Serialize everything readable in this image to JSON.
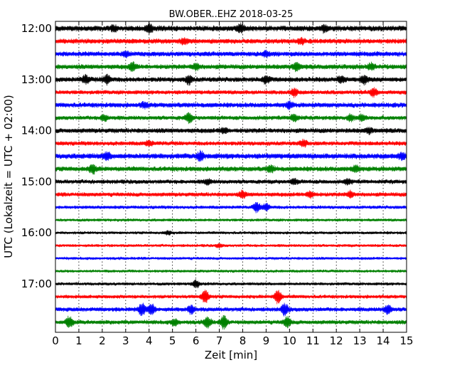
{
  "chart_data": {
    "type": "line",
    "title": "BW.OBER..EHZ 2018-03-25",
    "xlabel": "Zeit  [min]",
    "ylabel": "UTC (Lokalzeit = UTC + 02:00)",
    "xlim": [
      0,
      15
    ],
    "x_ticks": [
      "0",
      "1",
      "2",
      "3",
      "4",
      "5",
      "6",
      "7",
      "8",
      "9",
      "10",
      "11",
      "12",
      "13",
      "14",
      "15"
    ],
    "y_tick_labels": [
      "12:00",
      "13:00",
      "14:00",
      "15:00",
      "16:00",
      "17:00"
    ],
    "grid": "vertical-dotted",
    "row_colors": [
      "#000000",
      "#ff0000",
      "#0000ff",
      "#008000"
    ],
    "series": [
      {
        "start": "12:00",
        "color": "#000000",
        "amp": 4.5,
        "events": [
          [
            2.5,
            3
          ],
          [
            4.0,
            5
          ],
          [
            7.9,
            5
          ],
          [
            11.5,
            4
          ]
        ]
      },
      {
        "start": "12:15",
        "color": "#ff0000",
        "amp": 4.0,
        "events": [
          [
            5.5,
            3
          ],
          [
            10.5,
            3
          ]
        ]
      },
      {
        "start": "12:30",
        "color": "#0000ff",
        "amp": 4.0,
        "events": [
          [
            3.0,
            3
          ],
          [
            9.0,
            3
          ]
        ]
      },
      {
        "start": "12:45",
        "color": "#008000",
        "amp": 4.0,
        "events": [
          [
            3.3,
            5
          ],
          [
            6.0,
            4
          ],
          [
            10.3,
            5
          ],
          [
            13.5,
            4
          ]
        ]
      },
      {
        "start": "13:00",
        "color": "#000000",
        "amp": 4.0,
        "events": [
          [
            1.3,
            5
          ],
          [
            2.2,
            6
          ],
          [
            5.7,
            5
          ],
          [
            9.0,
            5
          ],
          [
            12.2,
            4
          ],
          [
            13.2,
            5
          ]
        ]
      },
      {
        "start": "13:15",
        "color": "#ff0000",
        "amp": 3.5,
        "events": [
          [
            10.2,
            5
          ],
          [
            13.6,
            5
          ]
        ]
      },
      {
        "start": "13:30",
        "color": "#0000ff",
        "amp": 4.0,
        "events": [
          [
            3.8,
            3
          ],
          [
            10.0,
            4
          ]
        ]
      },
      {
        "start": "13:45",
        "color": "#008000",
        "amp": 3.5,
        "events": [
          [
            2.1,
            4
          ],
          [
            5.7,
            6
          ],
          [
            10.2,
            5
          ],
          [
            12.6,
            4
          ],
          [
            13.1,
            4
          ]
        ]
      },
      {
        "start": "14:00",
        "color": "#000000",
        "amp": 4.0,
        "events": [
          [
            7.2,
            3
          ],
          [
            13.4,
            3
          ]
        ]
      },
      {
        "start": "14:15",
        "color": "#ff0000",
        "amp": 3.5,
        "events": [
          [
            4.0,
            3
          ],
          [
            10.6,
            4
          ]
        ]
      },
      {
        "start": "14:30",
        "color": "#0000ff",
        "amp": 4.5,
        "events": [
          [
            2.2,
            4
          ],
          [
            6.2,
            5
          ],
          [
            14.8,
            4
          ]
        ]
      },
      {
        "start": "14:45",
        "color": "#008000",
        "amp": 4.0,
        "events": [
          [
            1.6,
            5
          ],
          [
            9.2,
            4
          ],
          [
            12.8,
            4
          ]
        ]
      },
      {
        "start": "15:00",
        "color": "#000000",
        "amp": 3.5,
        "events": [
          [
            6.5,
            3
          ],
          [
            10.2,
            3
          ],
          [
            12.5,
            3
          ]
        ]
      },
      {
        "start": "15:15",
        "color": "#ff0000",
        "amp": 3.5,
        "events": [
          [
            8.0,
            4
          ],
          [
            10.9,
            4
          ],
          [
            12.6,
            4
          ]
        ]
      },
      {
        "start": "15:30",
        "color": "#0000ff",
        "amp": 2.8,
        "events": [
          [
            8.6,
            6
          ],
          [
            9.0,
            5
          ]
        ]
      },
      {
        "start": "15:45",
        "color": "#008000",
        "amp": 2.5,
        "events": []
      },
      {
        "start": "16:00",
        "color": "#000000",
        "amp": 2.4,
        "events": [
          [
            4.8,
            2
          ]
        ]
      },
      {
        "start": "16:15",
        "color": "#ff0000",
        "amp": 2.4,
        "events": [
          [
            7.0,
            2
          ]
        ]
      },
      {
        "start": "16:30",
        "color": "#0000ff",
        "amp": 2.4,
        "events": []
      },
      {
        "start": "16:45",
        "color": "#008000",
        "amp": 2.4,
        "events": []
      },
      {
        "start": "17:00",
        "color": "#000000",
        "amp": 2.6,
        "events": [
          [
            6.0,
            5
          ]
        ]
      },
      {
        "start": "17:15",
        "color": "#ff0000",
        "amp": 3.0,
        "events": [
          [
            6.4,
            9
          ],
          [
            9.5,
            9
          ]
        ]
      },
      {
        "start": "17:30",
        "color": "#0000ff",
        "amp": 3.5,
        "events": [
          [
            3.7,
            8
          ],
          [
            4.1,
            7
          ],
          [
            5.8,
            5
          ],
          [
            9.8,
            7
          ],
          [
            14.2,
            6
          ]
        ]
      },
      {
        "start": "17:45",
        "color": "#008000",
        "amp": 3.5,
        "events": [
          [
            0.6,
            7
          ],
          [
            5.1,
            4
          ],
          [
            6.5,
            7
          ],
          [
            7.2,
            8
          ],
          [
            9.9,
            7
          ]
        ]
      }
    ]
  }
}
